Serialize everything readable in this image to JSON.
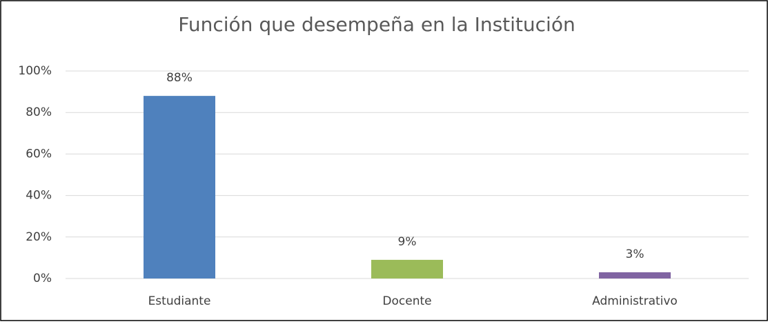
{
  "chart_data": {
    "type": "bar",
    "title": "Función que desempeña en la Institución",
    "categories": [
      "Estudiante",
      "Docente",
      "Administrativo"
    ],
    "values": [
      88,
      9,
      3
    ],
    "value_labels": [
      "88%",
      "9%",
      "3%"
    ],
    "colors": [
      "#4f81bd",
      "#9bbb59",
      "#8064a2"
    ],
    "ylim": [
      0,
      100
    ],
    "yticks": [
      {
        "value": 0,
        "label": "0%"
      },
      {
        "value": 20,
        "label": "20%"
      },
      {
        "value": 40,
        "label": "40%"
      },
      {
        "value": 60,
        "label": "60%"
      },
      {
        "value": 80,
        "label": "80%"
      },
      {
        "value": 100,
        "label": "100%"
      }
    ],
    "grid": true
  }
}
